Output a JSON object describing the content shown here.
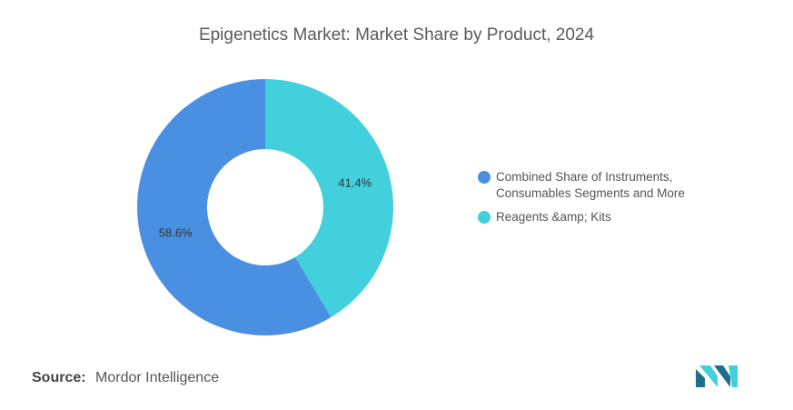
{
  "chart_data": {
    "type": "pie",
    "title": "Epigenetics Market: Market Share by Product, 2024",
    "donut": true,
    "legend_position": "right",
    "slices": [
      {
        "label": "Reagents &amp; Kits",
        "value": 41.4,
        "value_label": "41.4%",
        "color": "#42d0dc"
      },
      {
        "label": "Combined Share of Instruments, Consumables Segments and More",
        "value": 58.6,
        "value_label": "58.6%",
        "color": "#4a90e2"
      }
    ],
    "legend": [
      {
        "label_line1": "Combined Share of Instruments,",
        "label_line2": "Consumables Segments and More",
        "color": "#4a90e2"
      },
      {
        "label_line1": "Reagents &amp; Kits",
        "label_line2": "",
        "color": "#42d0dc"
      }
    ]
  },
  "source": {
    "label": "Source:",
    "text": "Mordor Intelligence"
  },
  "logo": {
    "icon": "mordor-intelligence-logo-icon",
    "colors": [
      "#1f6f8b",
      "#42d0dc"
    ]
  }
}
